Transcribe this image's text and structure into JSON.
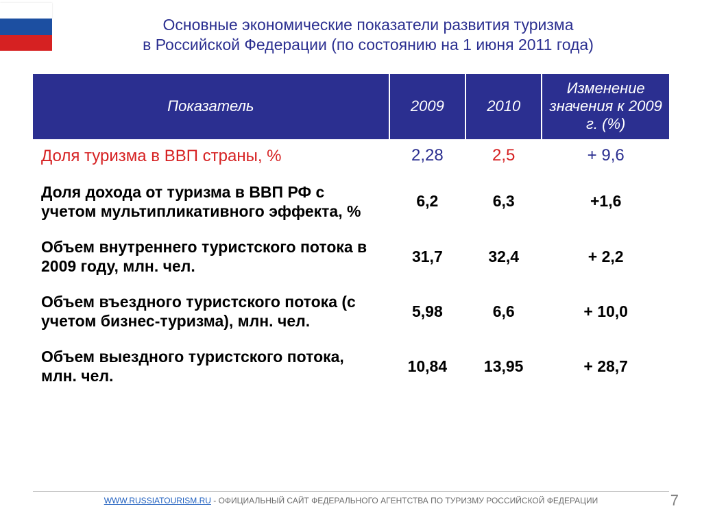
{
  "flag": {
    "colors": [
      "#ffffff",
      "#1c4fa1",
      "#d62122"
    ]
  },
  "title": {
    "line1": "Основные экономические показатели развития туризма",
    "line2": "в Российской Федерации (по состоянию на 1 июня 2011 года)",
    "color": "#2b2f90",
    "fontsize": 23
  },
  "table": {
    "header_bg": "#2b2f90",
    "header_color": "#ffffff",
    "columns": [
      "Показатель",
      "2009",
      "2010",
      "Изменение значения к 2009 г. (%)"
    ],
    "col_widths_pct": [
      56,
      12,
      12,
      20
    ],
    "rows": [
      {
        "label": "Доля туризма в ВВП страны, %",
        "y2009": "2,28",
        "y2010": "2,5",
        "change": "+ 9,6",
        "highlight": true
      },
      {
        "label": "Доля дохода от туризма в ВВП РФ с учетом мультипликативного эффекта, %",
        "y2009": "6,2",
        "y2010": "6,3",
        "change": "+1,6",
        "highlight": false
      },
      {
        "label": "Объем внутреннего туристского потока в 2009 году, млн. чел.",
        "y2009": "31,7",
        "y2010": "32,4",
        "change": "+ 2,2",
        "highlight": false
      },
      {
        "label": "Объем въездного туристского потока (с учетом бизнес-туризма), млн. чел.",
        "y2009": "5,98",
        "y2010": "6,6",
        "change": "+ 10,0",
        "highlight": false
      },
      {
        "label": "Объем выездного туристского потока, млн. чел.",
        "y2009": "10,84",
        "y2010": "13,95",
        "change": "+ 28,7",
        "highlight": false
      }
    ],
    "highlight_label_color": "#d62122",
    "highlight_2009_color": "#2b2f90",
    "highlight_2010_color": "#d62122",
    "highlight_change_color": "#2b2f90",
    "body_text_color": "#000000"
  },
  "footer": {
    "link_text": "WWW.RUSSIATOURISM.RU",
    "text": " - ОФИЦИАЛЬНЫЙ САЙТ ФЕДЕРАЛЬНОГО АГЕНТСТВА ПО ТУРИЗМУ РОССИЙСКОЙ ФЕДЕРАЦИИ",
    "link_color": "#1f5fbf",
    "text_color": "#6b6b6b"
  },
  "page_number": "7"
}
